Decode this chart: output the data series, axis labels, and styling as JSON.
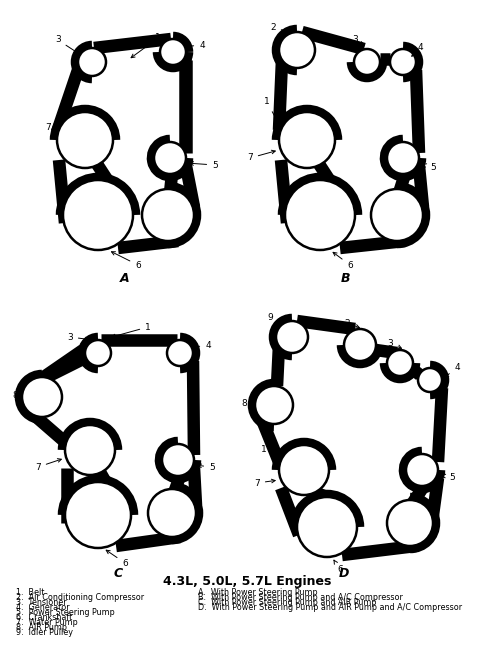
{
  "title": "4.3L, 5.0L, 5.7L Engines",
  "bg_color": "#ffffff",
  "legend_items": [
    "1.  Belt",
    "2.  Air Conditioning Compressor",
    "3.  Tensioner",
    "4.  Generator",
    "5.  Power Steering Pump",
    "6.  Crankshaft",
    "7.  Water Pump",
    "8.  AIR Pump",
    "9.  Idler Pulley"
  ],
  "legend_right": [
    "A.  With Power Steering Pump",
    "B.  With Power Steering Pump and A/C Compressor",
    "C.  With Power Steering Pump and AIR Pump",
    "D.  With Power Steering Pump and AIR Pump and A/C Compressor"
  ]
}
